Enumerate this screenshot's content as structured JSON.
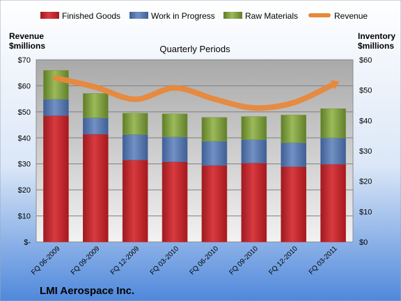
{
  "chart_data": {
    "type": "bar",
    "stacked": true,
    "title": "Quarterly Periods",
    "footer": "LMI Aerospace Inc.",
    "y_left_label": [
      "Revenue",
      "$millions"
    ],
    "y_right_label": [
      "Inventory",
      "$millions"
    ],
    "y_left_ticks": [
      "$-",
      "$10",
      "$20",
      "$30",
      "$40",
      "$50",
      "$60",
      "$70"
    ],
    "y_right_ticks": [
      "$0",
      "$10",
      "$20",
      "$30",
      "$40",
      "$50",
      "$60"
    ],
    "y_left_range": [
      0,
      70
    ],
    "y_right_range": [
      0,
      60
    ],
    "grid": true,
    "legend_position": "top",
    "categories": [
      "FQ 06-2009",
      "FQ 09-2009",
      "FQ 12-2009",
      "FQ 03-2010",
      "FQ 06-2010",
      "FQ 09-2010",
      "FQ 12-2010",
      "FQ 03-2011"
    ],
    "series": [
      {
        "name": "Finished Goods",
        "axis": "right",
        "kind": "bar",
        "color": "#c0272d",
        "values": [
          41.6,
          35.5,
          27.0,
          26.4,
          25.2,
          26.0,
          24.8,
          25.6
        ]
      },
      {
        "name": "Work in Progress",
        "axis": "right",
        "kind": "bar",
        "color": "#4f71a9",
        "values": [
          5.4,
          5.4,
          8.4,
          8.2,
          8.0,
          7.7,
          7.9,
          8.7
        ]
      },
      {
        "name": "Raw Materials",
        "axis": "right",
        "kind": "bar",
        "color": "#7a9a3a",
        "values": [
          9.5,
          8.0,
          7.0,
          7.6,
          7.8,
          7.6,
          9.1,
          9.6
        ]
      },
      {
        "name": "Revenue",
        "axis": "left",
        "kind": "line",
        "color": "#e8883a",
        "values": [
          63.0,
          59.5,
          54.8,
          59.2,
          54.9,
          51.5,
          53.5,
          60.5
        ]
      }
    ]
  }
}
